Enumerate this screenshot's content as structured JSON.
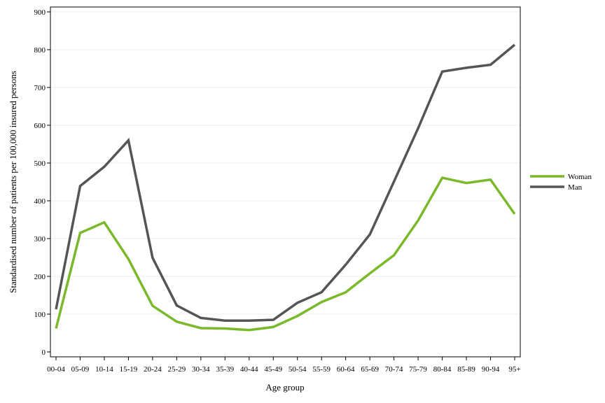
{
  "chart_data": {
    "type": "line",
    "title": "",
    "xlabel": "Age group",
    "ylabel": "Standardised number of patients per 100,000 insured persons",
    "categories": [
      "00-04",
      "05-09",
      "10-14",
      "15-19",
      "20-24",
      "25-29",
      "30-34",
      "35-39",
      "40-44",
      "45-49",
      "50-54",
      "55-59",
      "60-64",
      "65-69",
      "70-74",
      "75-79",
      "80-84",
      "85-89",
      "90-94",
      "95+"
    ],
    "ylim": [
      0,
      900
    ],
    "yticks": [
      0,
      100,
      200,
      300,
      400,
      500,
      600,
      700,
      800,
      900
    ],
    "grid": true,
    "legend_position": "right",
    "series": [
      {
        "name": "Woman",
        "color": "#7ab929",
        "values": [
          62,
          315,
          343,
          246,
          122,
          80,
          63,
          62,
          58,
          66,
          95,
          132,
          158,
          208,
          256,
          348,
          461,
          447,
          456,
          365
        ]
      },
      {
        "name": "Man",
        "color": "#555555",
        "values": [
          113,
          439,
          490,
          560,
          249,
          123,
          90,
          83,
          83,
          85,
          130,
          158,
          231,
          311,
          451,
          592,
          742,
          752,
          760,
          813
        ]
      }
    ]
  }
}
